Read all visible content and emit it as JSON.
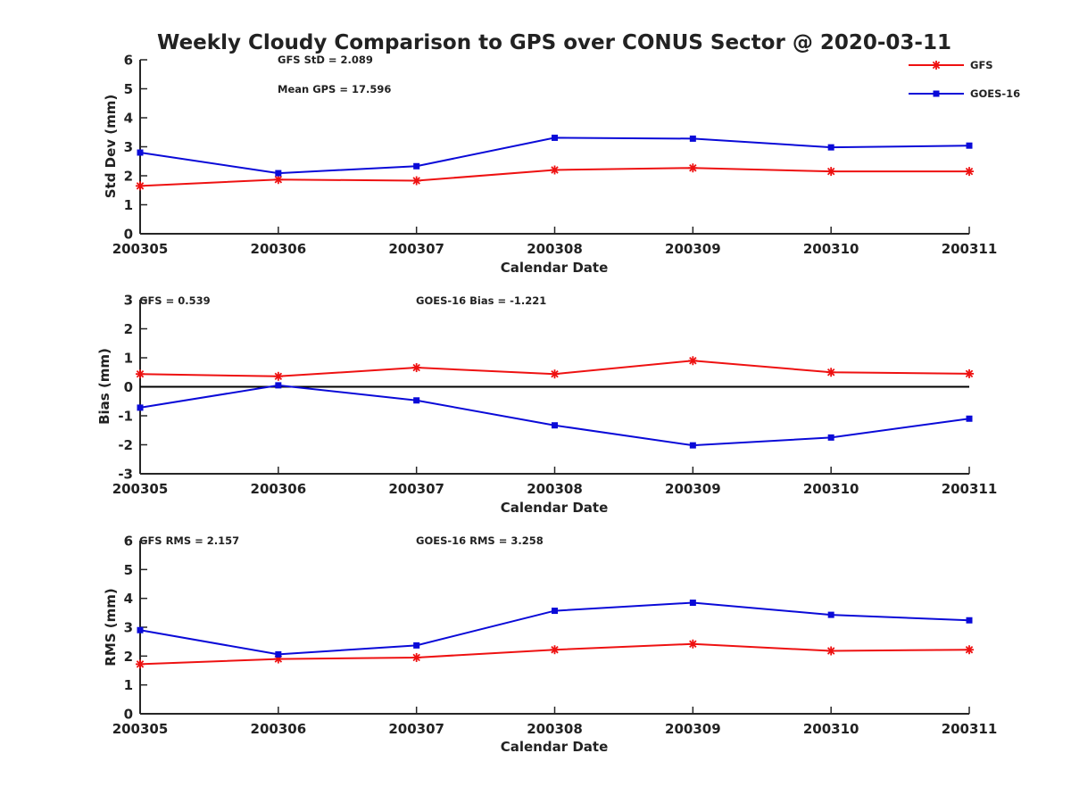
{
  "title": "Weekly Cloudy Comparison to GPS over CONUS Sector @ 2020-03-11",
  "colors": {
    "GFS": "#ee1111",
    "GOES-16": "#0a0ad8",
    "axis": "#262626",
    "zero_line": "#000000"
  },
  "legend": {
    "placement": "top-right",
    "entries": [
      {
        "name": "GFS",
        "color": "#ee1111",
        "marker": "asterisk"
      },
      {
        "name": "GOES-16",
        "color": "#0a0ad8",
        "marker": "square"
      }
    ]
  },
  "chart_data": [
    {
      "type": "line",
      "xlabel": "Calendar Date",
      "ylabel": "Std Dev (mm)",
      "categories": [
        "200305",
        "200306",
        "200307",
        "200308",
        "200309",
        "200310",
        "200311"
      ],
      "ylim": [
        0,
        6
      ],
      "yticks": [
        "0",
        "1",
        "2",
        "3",
        "4",
        "5",
        "6"
      ],
      "grid": false,
      "zero_line": false,
      "series": [
        {
          "name": "GFS",
          "marker": "asterisk",
          "values": [
            1.65,
            1.87,
            1.83,
            2.2,
            2.27,
            2.15,
            2.15
          ]
        },
        {
          "name": "GOES-16",
          "marker": "square",
          "values": [
            2.8,
            2.09,
            2.33,
            3.31,
            3.28,
            2.98,
            3.04
          ]
        }
      ],
      "annotations": [
        "GFS StD = 2.089",
        "Mean GPS = 17.596"
      ]
    },
    {
      "type": "line",
      "xlabel": "Calendar Date",
      "ylabel": "Bias (mm)",
      "categories": [
        "200305",
        "200306",
        "200307",
        "200308",
        "200309",
        "200310",
        "200311"
      ],
      "ylim": [
        -3,
        3
      ],
      "yticks": [
        "-3",
        "-2",
        "-1",
        "0",
        "1",
        "2",
        "3"
      ],
      "grid": false,
      "zero_line": true,
      "series": [
        {
          "name": "GFS",
          "marker": "asterisk",
          "values": [
            0.44,
            0.36,
            0.66,
            0.44,
            0.9,
            0.5,
            0.45
          ]
        },
        {
          "name": "GOES-16",
          "marker": "square",
          "values": [
            -0.72,
            0.05,
            -0.47,
            -1.33,
            -2.02,
            -1.75,
            -1.1
          ]
        }
      ],
      "annotations": [
        "GFS = 0.539",
        "GOES-16 Bias  = -1.221"
      ]
    },
    {
      "type": "line",
      "xlabel": "Calendar Date",
      "ylabel": "RMS (mm)",
      "categories": [
        "200305",
        "200306",
        "200307",
        "200308",
        "200309",
        "200310",
        "200311"
      ],
      "ylim": [
        0,
        6
      ],
      "yticks": [
        "0",
        "1",
        "2",
        "3",
        "4",
        "5",
        "6"
      ],
      "grid": false,
      "zero_line": false,
      "series": [
        {
          "name": "GFS",
          "marker": "asterisk",
          "values": [
            1.72,
            1.9,
            1.95,
            2.22,
            2.42,
            2.18,
            2.22
          ]
        },
        {
          "name": "GOES-16",
          "marker": "square",
          "values": [
            2.9,
            2.06,
            2.37,
            3.57,
            3.85,
            3.43,
            3.24
          ]
        }
      ],
      "annotations": [
        "GFS RMS = 2.157",
        "GOES-16 RMS = 3.258"
      ]
    }
  ]
}
